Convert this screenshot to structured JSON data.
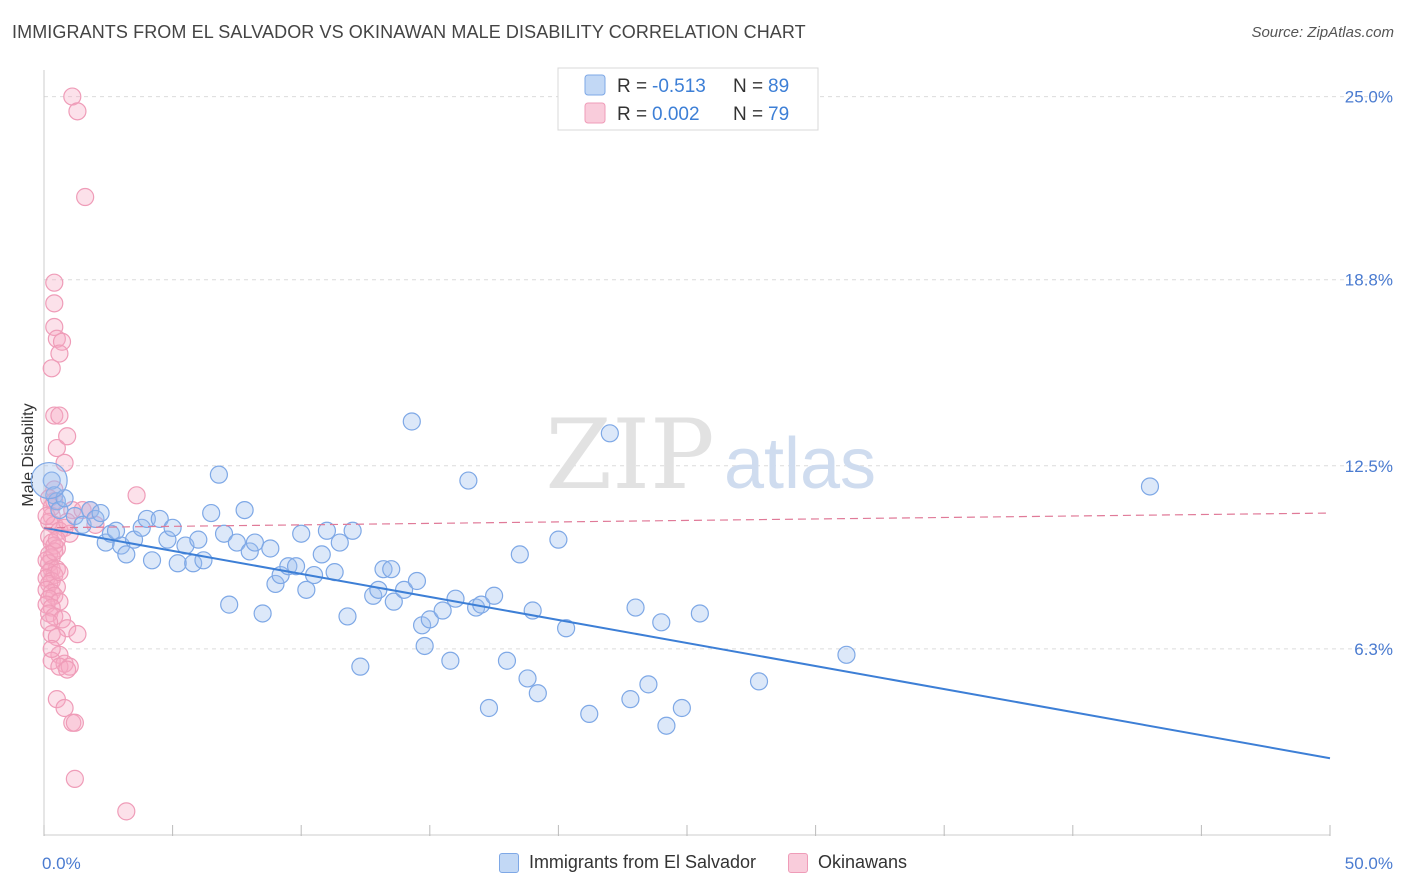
{
  "title": "IMMIGRANTS FROM EL SALVADOR VS OKINAWAN MALE DISABILITY CORRELATION CHART",
  "source": "Source: ZipAtlas.com",
  "watermark": {
    "zip": "ZIP",
    "atlas": "atlas"
  },
  "colors": {
    "blue": "#3d7fd6",
    "blue_fill": "rgba(154,190,238,0.35)",
    "blue_stroke": "#7ea8e6",
    "pink": "#e07a98",
    "pink_fill": "rgba(245,170,195,0.35)",
    "pink_stroke": "#ef9cb8",
    "grid": "#dcdcdc",
    "tick_text": "#4a7bd0"
  },
  "legend": {
    "rows": [
      {
        "r_label": "R = ",
        "r_value": "-0.513",
        "n_label": "N = ",
        "n_value": "89"
      },
      {
        "r_label": "R = ",
        "r_value": "0.002",
        "n_label": "N = ",
        "n_value": "79"
      }
    ]
  },
  "chart_data": {
    "type": "scatter",
    "title": "IMMIGRANTS FROM EL SALVADOR VS OKINAWAN MALE DISABILITY CORRELATION CHART",
    "xlabel": "",
    "ylabel": "Male Disability",
    "xlim": [
      0,
      50
    ],
    "ylim": [
      0,
      25.9
    ],
    "x_tick_labels": [
      "0.0%",
      "50.0%"
    ],
    "y_ticks": [
      6.3,
      12.5,
      18.8,
      25.0
    ],
    "y_tick_labels": [
      "6.3%",
      "12.5%",
      "18.8%",
      "25.0%"
    ],
    "grid": true,
    "legend_position": "top-center",
    "series": [
      {
        "name": "Immigrants from El Salvador",
        "color": "#3d7fd6",
        "trend": {
          "x0": 0,
          "y0": 10.4,
          "x1": 50,
          "y1": 2.6,
          "style": "solid"
        },
        "points": [
          [
            0.3,
            12.0
          ],
          [
            0.4,
            11.5
          ],
          [
            0.5,
            11.3
          ],
          [
            0.6,
            11.0
          ],
          [
            0.8,
            11.4
          ],
          [
            1.2,
            10.8
          ],
          [
            1.5,
            10.5
          ],
          [
            1.8,
            11.0
          ],
          [
            2.0,
            10.7
          ],
          [
            2.2,
            10.9
          ],
          [
            2.4,
            9.9
          ],
          [
            2.6,
            10.2
          ],
          [
            2.8,
            10.3
          ],
          [
            3.0,
            9.8
          ],
          [
            3.2,
            9.5
          ],
          [
            3.5,
            10.0
          ],
          [
            3.8,
            10.4
          ],
          [
            4.0,
            10.7
          ],
          [
            4.2,
            9.3
          ],
          [
            4.5,
            10.7
          ],
          [
            4.8,
            10.0
          ],
          [
            5.0,
            10.4
          ],
          [
            5.2,
            9.2
          ],
          [
            5.5,
            9.8
          ],
          [
            5.8,
            9.2
          ],
          [
            6.0,
            10.0
          ],
          [
            6.2,
            9.3
          ],
          [
            6.5,
            10.9
          ],
          [
            6.8,
            12.2
          ],
          [
            7.0,
            10.2
          ],
          [
            7.2,
            7.8
          ],
          [
            7.5,
            9.9
          ],
          [
            7.8,
            11.0
          ],
          [
            8.0,
            9.6
          ],
          [
            8.2,
            9.9
          ],
          [
            8.5,
            7.5
          ],
          [
            8.8,
            9.7
          ],
          [
            9.0,
            8.5
          ],
          [
            9.2,
            8.8
          ],
          [
            9.5,
            9.1
          ],
          [
            9.8,
            9.1
          ],
          [
            10.0,
            10.2
          ],
          [
            10.2,
            8.3
          ],
          [
            10.5,
            8.8
          ],
          [
            10.8,
            9.5
          ],
          [
            11.0,
            10.3
          ],
          [
            11.3,
            8.9
          ],
          [
            11.5,
            9.9
          ],
          [
            11.8,
            7.4
          ],
          [
            12.0,
            10.3
          ],
          [
            12.3,
            5.7
          ],
          [
            12.8,
            8.1
          ],
          [
            13.0,
            8.3
          ],
          [
            13.2,
            9.0
          ],
          [
            13.5,
            9.0
          ],
          [
            13.6,
            7.9
          ],
          [
            14.0,
            8.3
          ],
          [
            14.3,
            14.0
          ],
          [
            14.5,
            8.6
          ],
          [
            14.7,
            7.1
          ],
          [
            14.8,
            6.4
          ],
          [
            15.0,
            7.3
          ],
          [
            15.5,
            7.6
          ],
          [
            15.8,
            5.9
          ],
          [
            16.0,
            8.0
          ],
          [
            16.5,
            12.0
          ],
          [
            16.8,
            7.7
          ],
          [
            17.0,
            7.8
          ],
          [
            17.3,
            4.3
          ],
          [
            17.5,
            8.1
          ],
          [
            18.0,
            5.9
          ],
          [
            18.5,
            9.5
          ],
          [
            18.8,
            5.3
          ],
          [
            19.0,
            7.6
          ],
          [
            19.2,
            4.8
          ],
          [
            20.0,
            10.0
          ],
          [
            20.3,
            7.0
          ],
          [
            21.2,
            4.1
          ],
          [
            22.0,
            13.6
          ],
          [
            22.8,
            4.6
          ],
          [
            23.0,
            7.7
          ],
          [
            23.5,
            5.1
          ],
          [
            24.0,
            7.2
          ],
          [
            24.2,
            3.7
          ],
          [
            24.8,
            4.3
          ],
          [
            25.5,
            7.5
          ],
          [
            27.8,
            5.2
          ],
          [
            31.2,
            6.1
          ],
          [
            43.0,
            11.8
          ]
        ]
      },
      {
        "name": "Okinawans",
        "color": "#e07a98",
        "trend": {
          "x0": 0,
          "y0": 10.4,
          "x1": 50,
          "y1": 10.9,
          "style": "dashed"
        },
        "points": [
          [
            1.1,
            25.0
          ],
          [
            1.3,
            24.5
          ],
          [
            1.6,
            21.6
          ],
          [
            0.4,
            18.7
          ],
          [
            0.4,
            18.0
          ],
          [
            0.4,
            17.2
          ],
          [
            0.5,
            16.8
          ],
          [
            0.7,
            16.7
          ],
          [
            0.6,
            16.3
          ],
          [
            0.3,
            15.8
          ],
          [
            0.4,
            14.2
          ],
          [
            0.6,
            14.2
          ],
          [
            0.5,
            13.1
          ],
          [
            0.9,
            13.5
          ],
          [
            0.8,
            12.6
          ],
          [
            0.4,
            11.7
          ],
          [
            0.2,
            11.4
          ],
          [
            0.3,
            11.1
          ],
          [
            0.4,
            11.3
          ],
          [
            3.6,
            11.5
          ],
          [
            1.1,
            11.0
          ],
          [
            1.5,
            11.0
          ],
          [
            0.3,
            10.8
          ],
          [
            0.2,
            10.6
          ],
          [
            0.4,
            10.5
          ],
          [
            0.8,
            10.4
          ],
          [
            0.6,
            10.3
          ],
          [
            1.0,
            10.2
          ],
          [
            0.2,
            10.1
          ],
          [
            0.3,
            9.9
          ],
          [
            0.4,
            9.8
          ],
          [
            0.5,
            9.7
          ],
          [
            0.2,
            9.5
          ],
          [
            0.3,
            9.4
          ],
          [
            0.1,
            9.3
          ],
          [
            0.2,
            9.2
          ],
          [
            0.3,
            9.0
          ],
          [
            0.5,
            9.0
          ],
          [
            0.2,
            8.9
          ],
          [
            0.4,
            8.8
          ],
          [
            0.1,
            8.7
          ],
          [
            0.3,
            8.6
          ],
          [
            0.2,
            8.5
          ],
          [
            0.5,
            8.4
          ],
          [
            0.1,
            8.3
          ],
          [
            0.3,
            8.2
          ],
          [
            0.4,
            8.1
          ],
          [
            0.2,
            8.0
          ],
          [
            0.6,
            7.9
          ],
          [
            0.1,
            7.8
          ],
          [
            0.3,
            7.7
          ],
          [
            0.2,
            7.5
          ],
          [
            0.4,
            7.4
          ],
          [
            0.7,
            7.3
          ],
          [
            0.9,
            7.0
          ],
          [
            1.3,
            6.8
          ],
          [
            0.3,
            6.8
          ],
          [
            0.5,
            6.7
          ],
          [
            0.6,
            6.1
          ],
          [
            0.3,
            5.9
          ],
          [
            0.8,
            5.8
          ],
          [
            0.6,
            5.7
          ],
          [
            1.0,
            5.7
          ],
          [
            0.9,
            5.6
          ],
          [
            0.5,
            4.6
          ],
          [
            0.8,
            4.3
          ],
          [
            1.1,
            3.8
          ],
          [
            1.2,
            3.8
          ],
          [
            1.2,
            1.9
          ],
          [
            3.2,
            0.8
          ],
          [
            1.8,
            11.0
          ],
          [
            0.1,
            10.8
          ],
          [
            2.0,
            10.5
          ],
          [
            0.4,
            9.6
          ],
          [
            0.6,
            8.9
          ],
          [
            0.2,
            7.2
          ],
          [
            0.9,
            10.6
          ],
          [
            0.5,
            10.0
          ],
          [
            0.3,
            6.3
          ]
        ]
      }
    ]
  }
}
